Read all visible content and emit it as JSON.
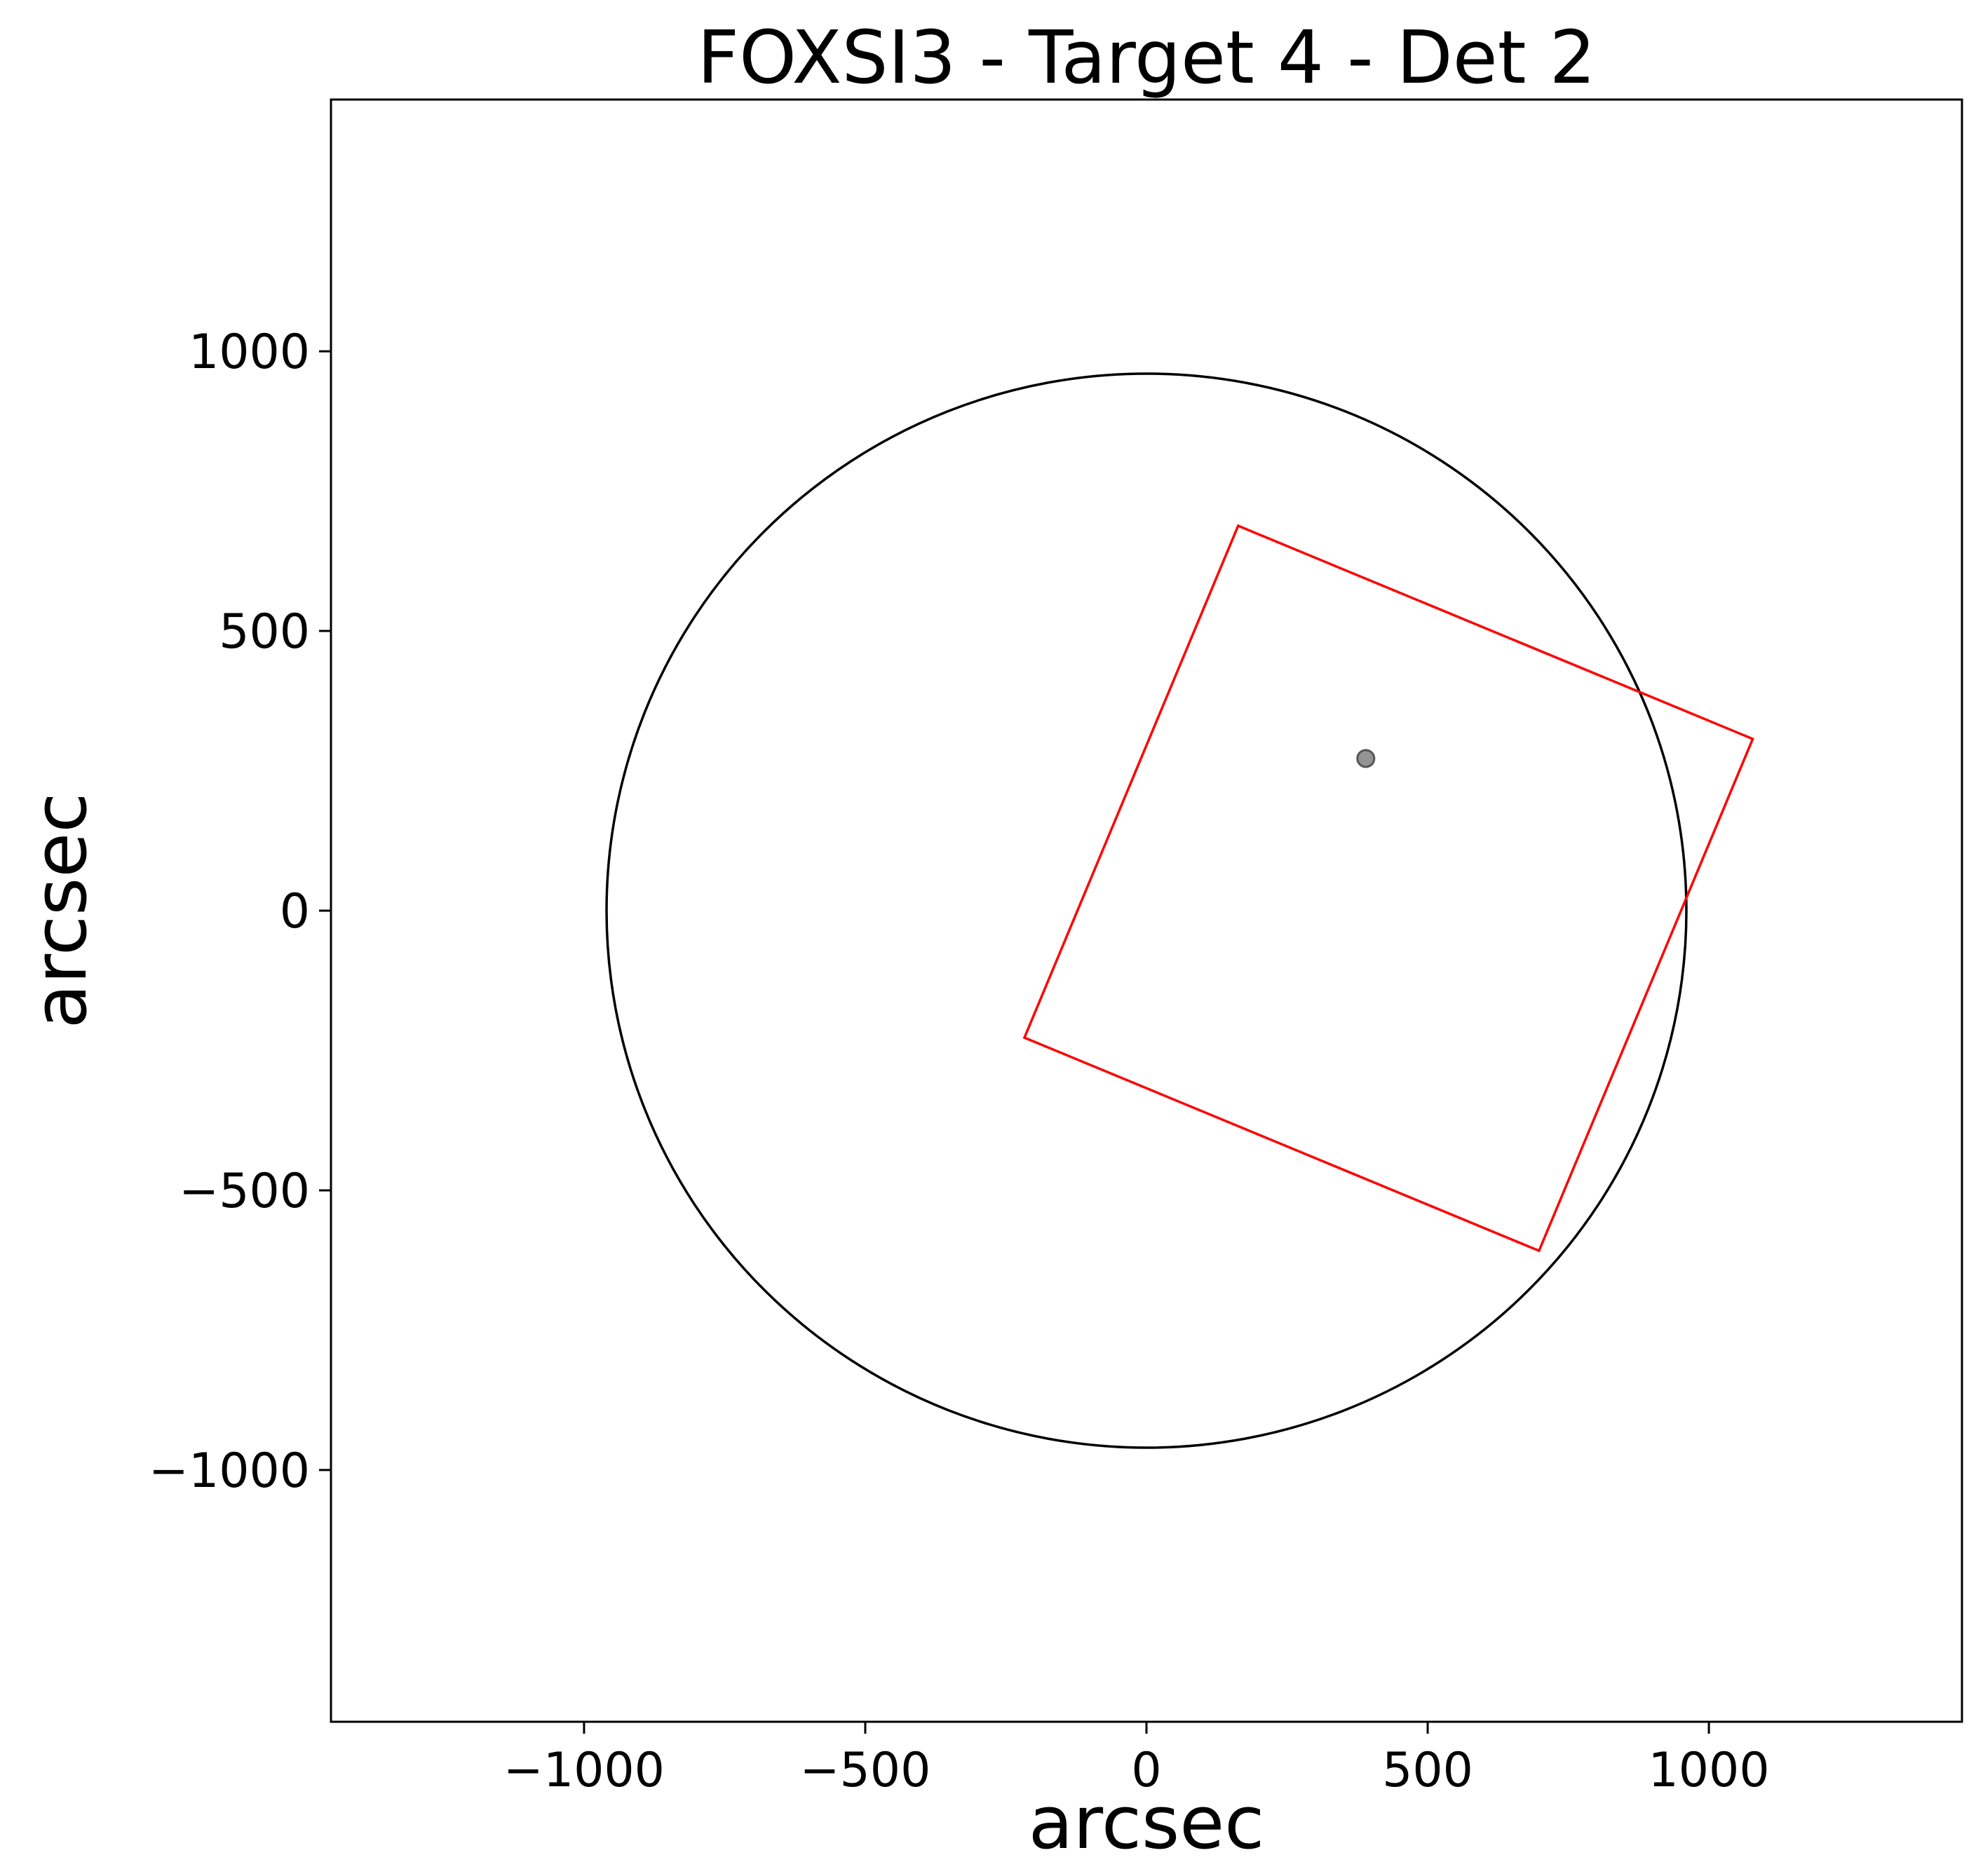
{
  "chart_data": {
    "type": "scatter",
    "title": "FOXSI3 - Target 4 - Det 2",
    "xlabel": "arcsec",
    "ylabel": "arcsec",
    "xlim": [
      -1450,
      1450
    ],
    "ylim": [
      -1450,
      1450
    ],
    "xticks": [
      -1000,
      -500,
      0,
      500,
      1000
    ],
    "yticks": [
      -1000,
      -500,
      0,
      500,
      1000
    ],
    "xtick_labels": [
      "−1000",
      "−500",
      "0",
      "500",
      "1000"
    ],
    "ytick_labels": [
      "−1000",
      "−500",
      "0",
      "500",
      "1000"
    ],
    "grid": false,
    "solar_limb": {
      "center": [
        0,
        0
      ],
      "radius": 960,
      "color": "#000000"
    },
    "detector_fov": {
      "color": "#ff0000",
      "corners": [
        [
          163,
          688
        ],
        [
          1078,
          307
        ],
        [
          698,
          -608
        ],
        [
          -217,
          -227
        ]
      ]
    },
    "target_point": {
      "x": 390,
      "y": 272,
      "color": "#808080"
    }
  }
}
